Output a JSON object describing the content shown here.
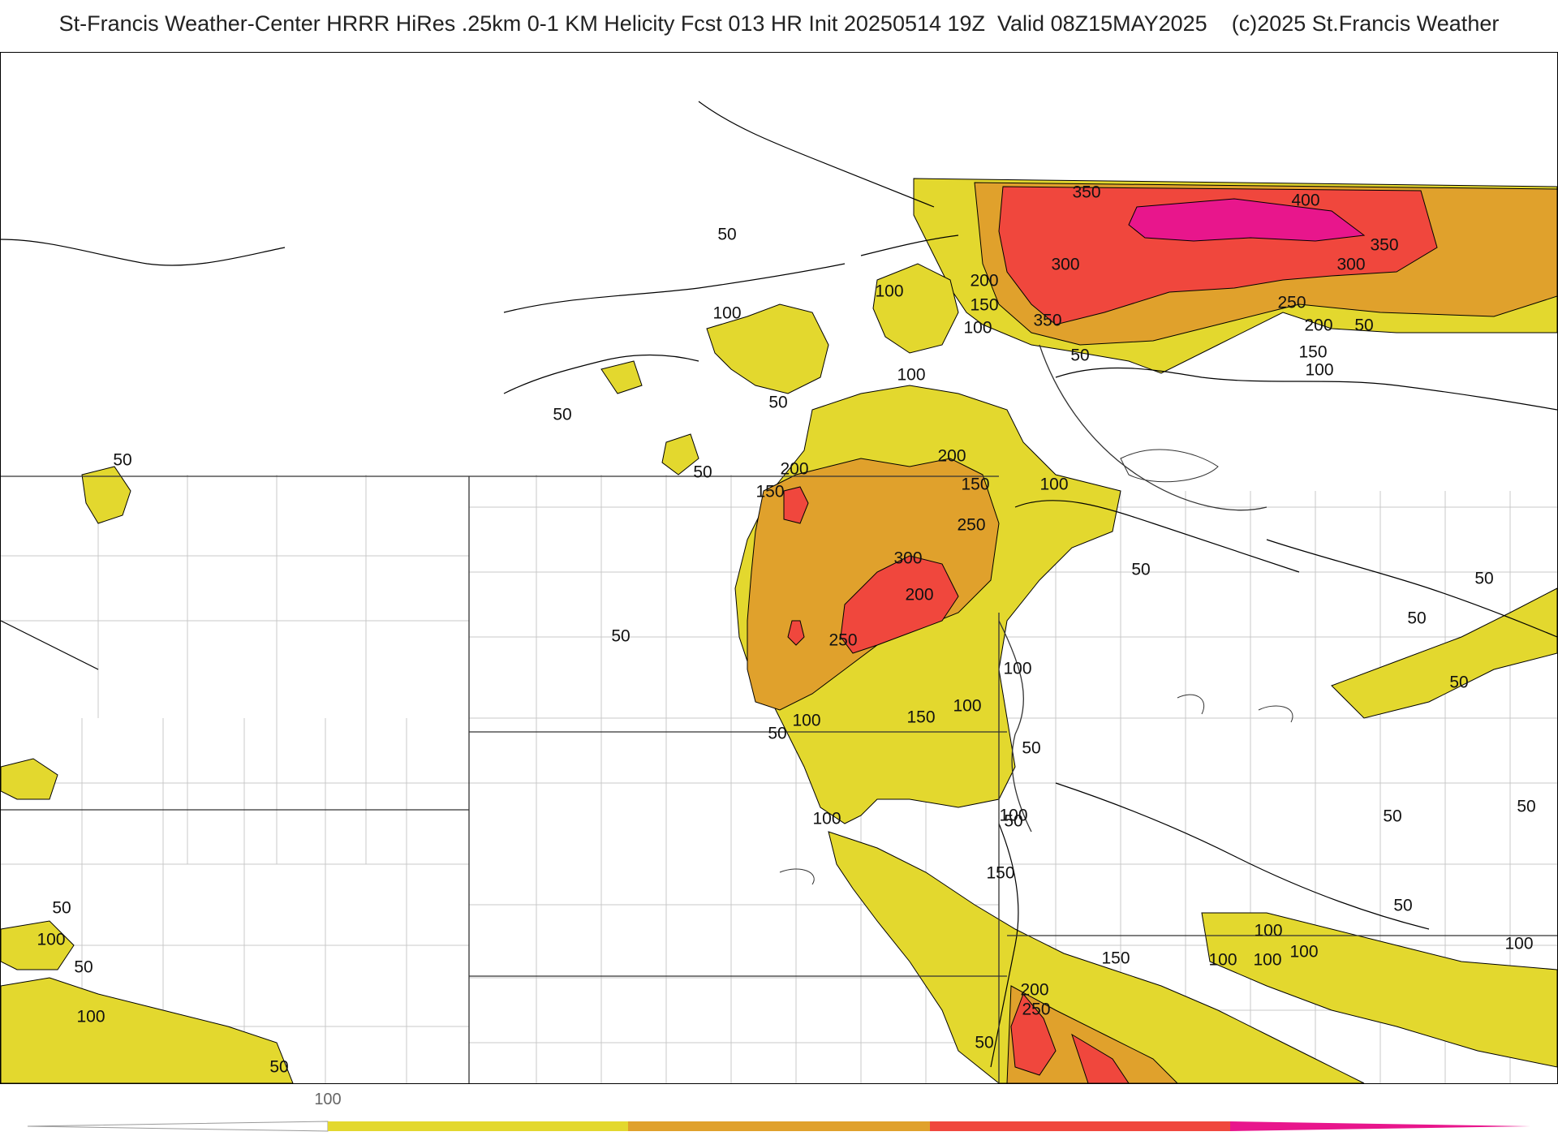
{
  "title": "St-Francis Weather-Center HRRR HiRes .25km 0-1 KM Helicity Fcst 013 HR Init 20250514 19Z  Valid 08Z15MAY2025    (c)2025 St.Francis Weather",
  "legend": {
    "ticks": [
      "100"
    ],
    "colors": {
      "50-100": "#e3d82e",
      "100-200": "#e3d82e",
      "200-300": "#e0a12c",
      "300-400": "#f0473d",
      "400+": "#e8168c"
    }
  },
  "contour_labels": [
    "50",
    "100",
    "50",
    "50",
    "50",
    "100",
    "100",
    "50",
    "200",
    "150",
    "200",
    "150",
    "100",
    "300",
    "200",
    "250",
    "250",
    "100",
    "50",
    "50",
    "100",
    "150",
    "100",
    "50",
    "150",
    "200",
    "250",
    "50",
    "50",
    "50",
    "50",
    "50",
    "50",
    "50",
    "100",
    "100",
    "100",
    "100",
    "150",
    "100",
    "50",
    "350",
    "400",
    "350",
    "300",
    "300",
    "350",
    "250",
    "200",
    "50",
    "150",
    "100",
    "50",
    "200",
    "150",
    "100",
    "50",
    "100",
    "50",
    "100",
    "50",
    "50",
    "100",
    "100"
  ],
  "colors": {
    "yellow": "#e3d82e",
    "orange": "#e0a12c",
    "red": "#f0473d",
    "magenta": "#e8168c",
    "boundary": "#bdbdbd",
    "state": "#333333"
  }
}
